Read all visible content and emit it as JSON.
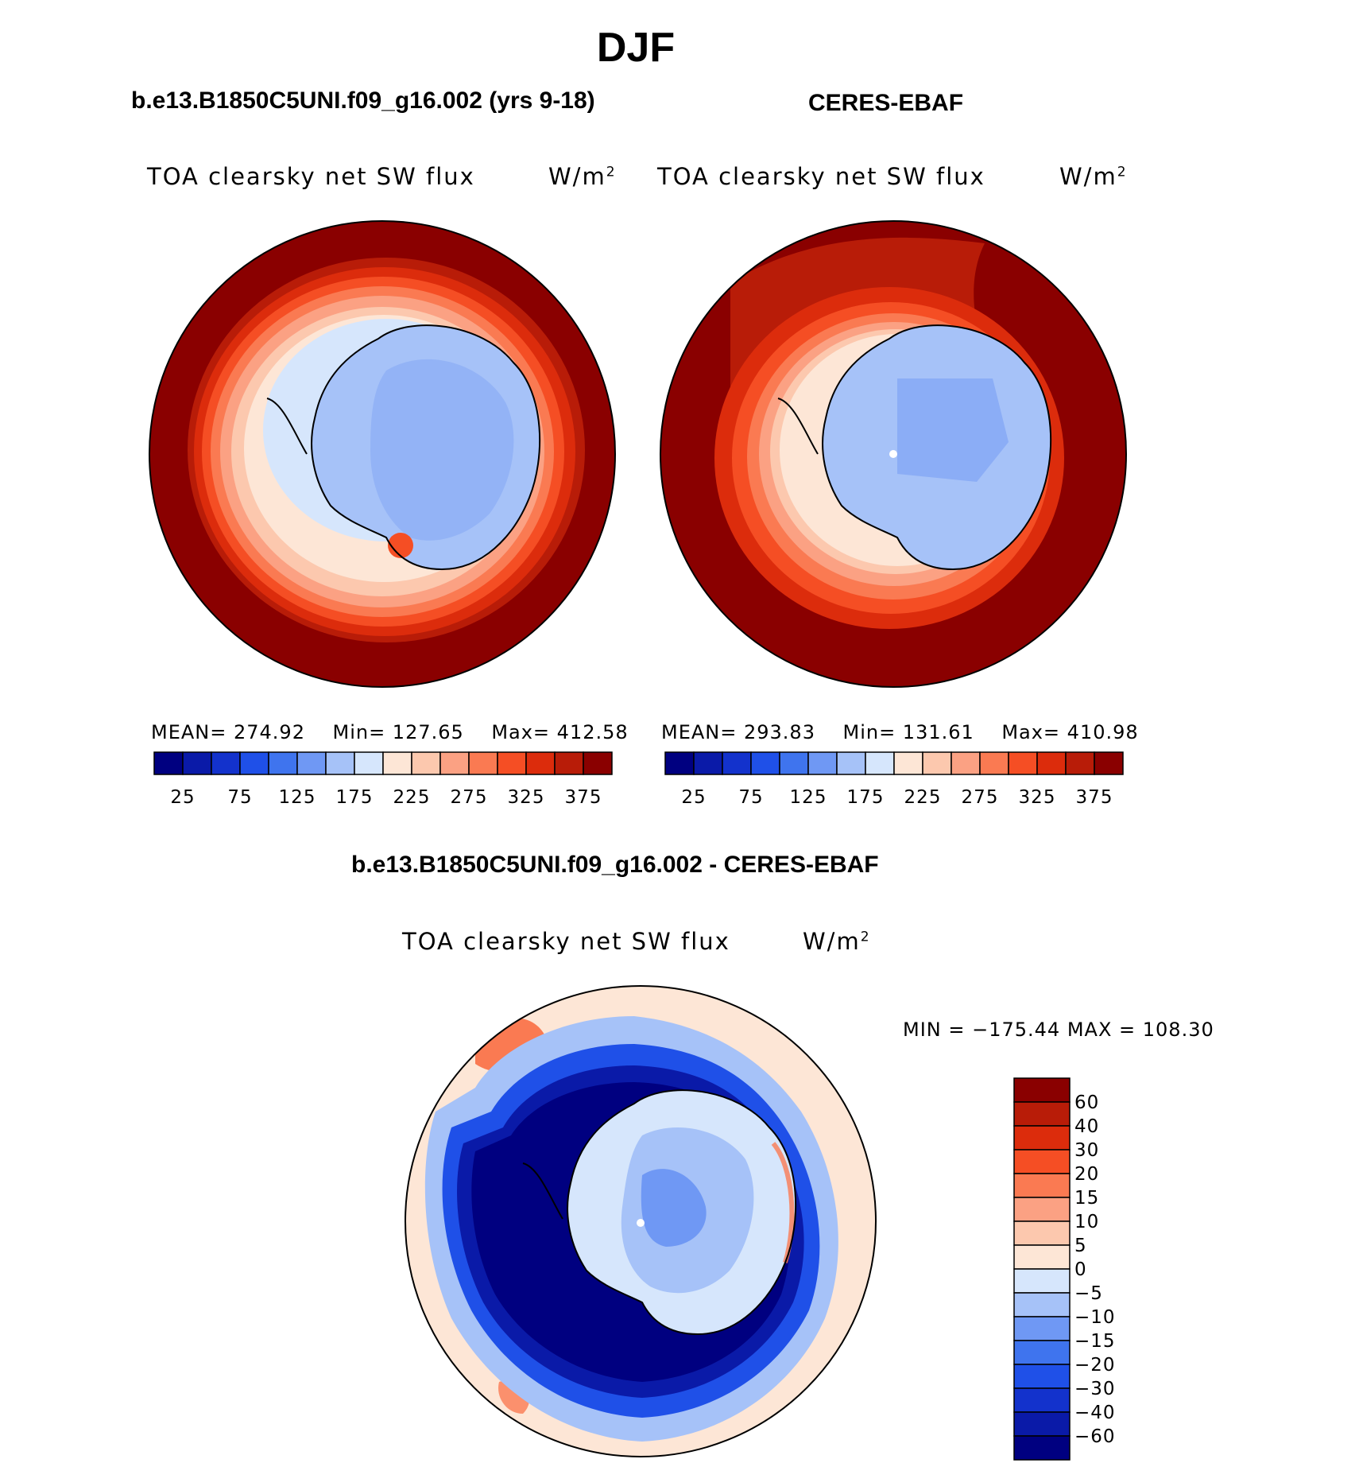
{
  "title": "DJF",
  "variable": "TOA clearsky net SW flux",
  "units_base": "W/m",
  "units_exp": "2",
  "panels": [
    {
      "title": "b.e13.B1850C5UNI.f09_g16.002 (yrs 9-18)",
      "stats": {
        "mean": "MEAN= 274.92",
        "min": "Min= 127.65",
        "max": "Max= 412.58"
      }
    },
    {
      "title": "CERES-EBAF",
      "stats": {
        "mean": "MEAN= 293.83",
        "min": "Min= 131.61",
        "max": "Max= 410.98"
      }
    }
  ],
  "top_colorbar": {
    "colors": [
      "#000080",
      "#0a1aa8",
      "#1332cc",
      "#1f50e8",
      "#3f74ee",
      "#6f98f4",
      "#a6c2f8",
      "#d6e6fc",
      "#fde6d6",
      "#fcc8ae",
      "#fba183",
      "#fa7a52",
      "#f54e24",
      "#dc2c0c",
      "#b81c08",
      "#8a0000"
    ],
    "labels": [
      "25",
      "75",
      "125",
      "175",
      "225",
      "275",
      "325",
      "375"
    ]
  },
  "diff": {
    "title": "b.e13.B1850C5UNI.f09_g16.002 - CERES-EBAF",
    "minmax": "MIN = −175.44 MAX = 108.30",
    "colorbar": {
      "colors_top_to_bottom": [
        "#8a0000",
        "#b81c08",
        "#dc2c0c",
        "#f54e24",
        "#fa7a52",
        "#fba183",
        "#fcc8ae",
        "#fde6d6",
        "#d6e6fc",
        "#a6c2f8",
        "#6f98f4",
        "#3f74ee",
        "#1f50e8",
        "#1332cc",
        "#0a1aa8",
        "#000080"
      ],
      "labels": [
        "60",
        "40",
        "30",
        "20",
        "15",
        "10",
        "5",
        "0",
        "−5",
        "−10",
        "−15",
        "−20",
        "−30",
        "−40",
        "−60"
      ]
    }
  },
  "map_colors": {
    "dark_red": "#8a0000",
    "red2": "#b81c08",
    "red3": "#dc2c0c",
    "red4": "#f54e24",
    "orange": "#fa7a52",
    "salmon": "#fba183",
    "peach": "#fcc8ae",
    "cream": "#fde6d6",
    "pale_blue": "#d6e6fc",
    "light_blue": "#a6c2f8",
    "mid_blue": "#6f98f4",
    "blue": "#3f74ee",
    "blue2": "#1f50e8",
    "dark_blue": "#0a1aa8",
    "navy": "#000080"
  }
}
